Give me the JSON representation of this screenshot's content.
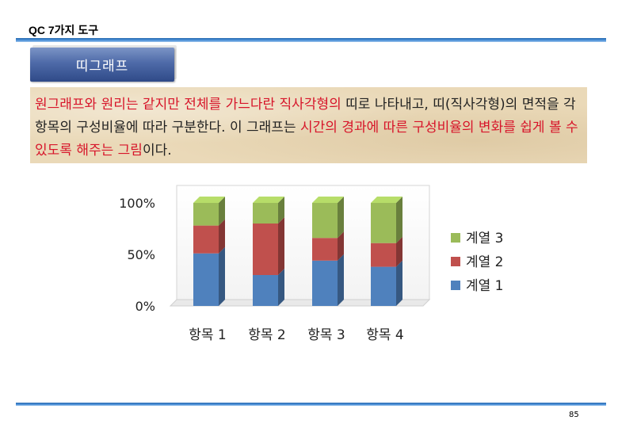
{
  "header": {
    "title": "QC 7가지 도구"
  },
  "section": {
    "label": "띠그래프"
  },
  "description": {
    "segments": [
      {
        "text": "원그래프와 원리는 같지만 전체를 가느다란 직사각형의",
        "style": "red"
      },
      {
        "text": " 띠로 나타내고, 띠(직사각형)의 면적을 각 항목의 구성비율에 따라 구분한다. 이 그래프는 ",
        "style": "dark"
      },
      {
        "text": "시간의 경과에 따른 구성비율의 변화를 쉽게 볼 수 있도록 해주는 그림",
        "style": "red"
      },
      {
        "text": "이다.",
        "style": "dark"
      }
    ]
  },
  "chart_data": {
    "type": "bar",
    "stacked": "percent",
    "categories": [
      "항목 1",
      "항목 2",
      "항목 3",
      "항목 4"
    ],
    "series": [
      {
        "name": "계열 1",
        "values": [
          51,
          30,
          44,
          38
        ],
        "color": "#4f81bd"
      },
      {
        "name": "계열 2",
        "values": [
          27,
          50,
          22,
          23
        ],
        "color": "#c0504d"
      },
      {
        "name": "계열 3",
        "values": [
          22,
          20,
          34,
          39
        ],
        "color": "#9bbb59"
      }
    ],
    "yticks": [
      "0%",
      "50%",
      "100%"
    ],
    "ylim": [
      0,
      100
    ],
    "legend": {
      "position": "right",
      "order": [
        "계열 3",
        "계열 2",
        "계열 1"
      ]
    },
    "grid": false
  },
  "footer": {
    "page_number": "85"
  }
}
